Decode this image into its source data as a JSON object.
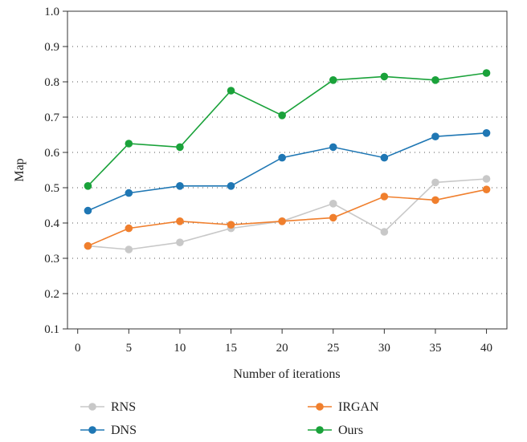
{
  "chart_data": {
    "type": "line",
    "xlabel": "Number of iterations",
    "ylabel": "Map",
    "xlim": [
      -1,
      42
    ],
    "ylim": [
      0.1,
      1.0
    ],
    "xticks": [
      0,
      5,
      10,
      15,
      20,
      25,
      30,
      35,
      40
    ],
    "yticks": [
      "0.1",
      "0.2",
      "0.3",
      "0.4",
      "0.5",
      "0.6",
      "0.7",
      "0.8",
      "0.9",
      "1.0"
    ],
    "grid": "horizontal dotted",
    "legend_position": "bottom",
    "x": [
      1,
      5,
      10,
      15,
      20,
      25,
      30,
      35,
      40
    ],
    "series": [
      {
        "name": "RNS",
        "color": "#c8c8c8",
        "values": [
          0.335,
          0.325,
          0.345,
          0.385,
          0.405,
          0.455,
          0.375,
          0.515,
          0.525
        ]
      },
      {
        "name": "IRGAN",
        "color": "#f07f2d",
        "values": [
          0.335,
          0.385,
          0.405,
          0.395,
          0.405,
          0.415,
          0.475,
          0.465,
          0.495
        ]
      },
      {
        "name": "DNS",
        "color": "#1f77b4",
        "values": [
          0.435,
          0.485,
          0.505,
          0.505,
          0.585,
          0.615,
          0.585,
          0.645,
          0.655
        ]
      },
      {
        "name": "Ours",
        "color": "#1aa23a",
        "values": [
          0.505,
          0.625,
          0.615,
          0.775,
          0.705,
          0.805,
          0.815,
          0.805,
          0.825
        ]
      }
    ]
  }
}
